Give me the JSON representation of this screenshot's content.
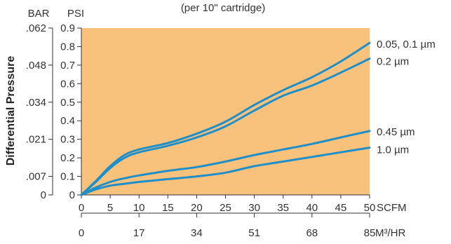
{
  "chart_data": {
    "type": "line",
    "subtitle": "(per 10\" cartridge)",
    "ylabel": "Differential Pressure",
    "colors": {
      "plot_bg": "#f9c27c",
      "line": "#1f8fc9",
      "axis": "#333333"
    },
    "grid": false,
    "y_psi": {
      "unit": "PSI",
      "ylim": [
        0,
        0.9
      ],
      "ticks": [
        "0",
        "0.1",
        "0.2",
        "0.3",
        "0.4",
        "0.5",
        "0.6",
        "0.7",
        "0.8",
        "0.9"
      ]
    },
    "y_bar": {
      "unit": "BAR",
      "ticks": [
        {
          "label": "0",
          "psi": 0
        },
        {
          "label": ".007",
          "psi": 0.1
        },
        {
          "label": ".021",
          "psi": 0.3
        },
        {
          "label": ".034",
          "psi": 0.5
        },
        {
          "label": ".048",
          "psi": 0.7
        },
        {
          "label": ".062",
          "psi": 0.9
        }
      ]
    },
    "x_scfm": {
      "unit": "SCFM",
      "xlim": [
        0,
        50
      ],
      "ticks": [
        "0",
        "5",
        "10",
        "15",
        "20",
        "25",
        "30",
        "35",
        "40",
        "45",
        "50"
      ]
    },
    "x_m3hr": {
      "unit": "M³/HR",
      "ticks": [
        {
          "label": "0",
          "scfm": 0
        },
        {
          "label": "17",
          "scfm": 10
        },
        {
          "label": "34",
          "scfm": 20
        },
        {
          "label": "51",
          "scfm": 30
        },
        {
          "label": "68",
          "scfm": 40
        },
        {
          "label": "85",
          "scfm": 50
        }
      ]
    },
    "series": [
      {
        "name": "0.05, 0.1 µm",
        "x": [
          0,
          2.5,
          5,
          7.5,
          10,
          15,
          20,
          25,
          30,
          35,
          40,
          45,
          50
        ],
        "y": [
          0,
          0.075,
          0.155,
          0.215,
          0.245,
          0.28,
          0.33,
          0.395,
          0.485,
          0.565,
          0.635,
          0.72,
          0.82
        ]
      },
      {
        "name": "0.2 µm",
        "x": [
          0,
          2.5,
          5,
          7.5,
          10,
          15,
          20,
          25,
          30,
          35,
          40,
          45,
          50
        ],
        "y": [
          0,
          0.07,
          0.145,
          0.2,
          0.23,
          0.265,
          0.31,
          0.37,
          0.455,
          0.535,
          0.59,
          0.66,
          0.735
        ]
      },
      {
        "name": "0.45 µm",
        "x": [
          0,
          2.5,
          5,
          7.5,
          10,
          15,
          20,
          25,
          30,
          35,
          40,
          45,
          50
        ],
        "y": [
          0,
          0.04,
          0.07,
          0.09,
          0.105,
          0.13,
          0.15,
          0.18,
          0.215,
          0.245,
          0.275,
          0.31,
          0.345
        ]
      },
      {
        "name": "1.0 µm",
        "x": [
          0,
          2.5,
          5,
          7.5,
          10,
          15,
          20,
          25,
          30,
          35,
          40,
          45,
          50
        ],
        "y": [
          0,
          0.03,
          0.05,
          0.06,
          0.07,
          0.085,
          0.1,
          0.12,
          0.155,
          0.18,
          0.205,
          0.23,
          0.255
        ]
      }
    ]
  }
}
